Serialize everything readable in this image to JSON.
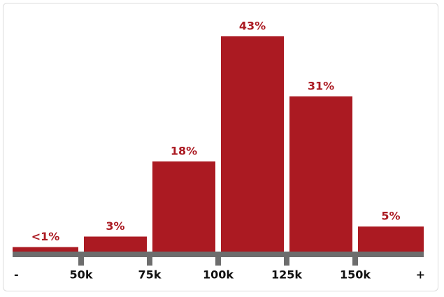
{
  "chart_data": {
    "type": "histogram",
    "bins": [
      "-",
      "50k",
      "75k",
      "100k",
      "125k",
      "150k",
      "+"
    ],
    "values": [
      0.9,
      3,
      18,
      43,
      31,
      5
    ],
    "value_labels": [
      "<1%",
      "3%",
      "18%",
      "43%",
      "31%",
      "5%"
    ],
    "color": "#ab1a22",
    "axis_color": "#6d6d6d"
  }
}
